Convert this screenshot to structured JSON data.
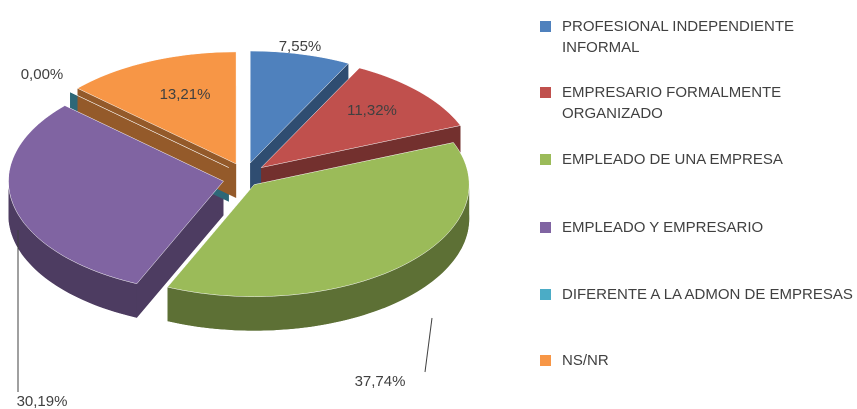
{
  "chart_data": {
    "type": "pie",
    "categories": [
      "PROFESIONAL INDEPENDIENTE INFORMAL",
      "EMPRESARIO FORMALMENTE ORGANIZADO",
      "EMPLEADO DE UNA EMPRESA",
      "EMPLEADO Y EMPRESARIO",
      "DIFERENTE A LA ADMON DE EMPRESAS",
      "NS/NR"
    ],
    "values": [
      7.55,
      11.32,
      37.74,
      30.19,
      0.0,
      13.21
    ],
    "value_labels": [
      "7,55%",
      "11,32%",
      "37,74%",
      "30,19%",
      "0,00%",
      "13,21%"
    ],
    "colors": [
      "#4f81bd",
      "#c0504d",
      "#9bbb59",
      "#8064a2",
      "#4bacc6",
      "#f79646"
    ],
    "legend": "right"
  }
}
